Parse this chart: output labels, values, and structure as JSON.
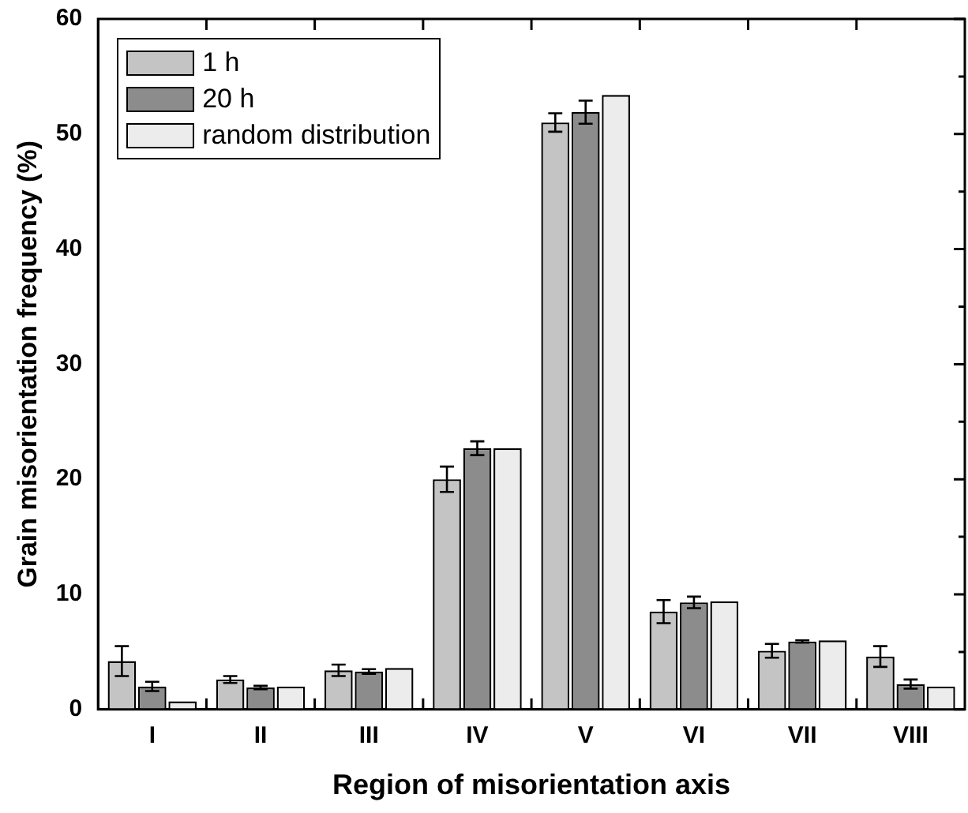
{
  "chart_data": {
    "type": "bar",
    "xlabel": "Region of misorientation axis",
    "ylabel": "Grain misorientation frequency (%)",
    "categories": [
      "I",
      "II",
      "III",
      "IV",
      "V",
      "VI",
      "VII",
      "VIII"
    ],
    "series": [
      {
        "name": "1 h",
        "color": "#c4c4c4",
        "values": [
          4.2,
          2.6,
          3.4,
          20.0,
          51.0,
          8.5,
          5.1,
          4.6
        ],
        "errors": [
          1.3,
          0.3,
          0.5,
          1.1,
          0.8,
          1.0,
          0.6,
          0.9
        ]
      },
      {
        "name": "20 h",
        "color": "#8c8c8c",
        "values": [
          2.0,
          1.9,
          3.3,
          22.7,
          51.9,
          9.3,
          5.9,
          2.2
        ],
        "errors": [
          0.4,
          0.15,
          0.2,
          0.6,
          1.0,
          0.5,
          0.1,
          0.4
        ]
      },
      {
        "name": "random distribution",
        "color": "#ececec",
        "values": [
          0.7,
          2.0,
          3.6,
          22.7,
          53.4,
          9.4,
          6.0,
          2.0
        ]
      }
    ],
    "ylim": [
      0,
      60
    ],
    "yticks": [
      0,
      {
        "value": 5,
        "label": null
      },
      10,
      {
        "value": 15,
        "label": null
      },
      20,
      {
        "value": 25,
        "label": null
      },
      30,
      {
        "value": 35,
        "label": null
      },
      40,
      {
        "value": 45,
        "label": null
      },
      50,
      {
        "value": 55,
        "label": null
      },
      60
    ],
    "grid": false,
    "legend": "top left"
  }
}
